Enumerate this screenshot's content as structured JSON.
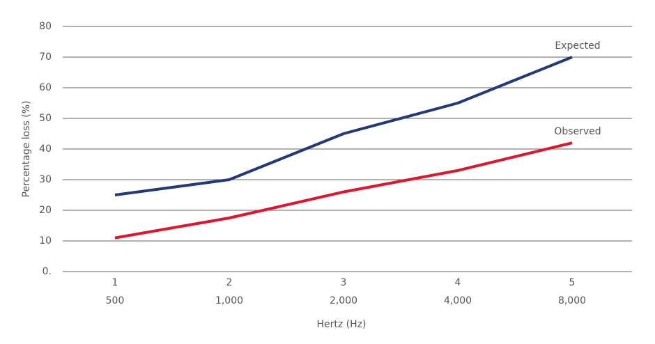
{
  "chart_data": {
    "type": "line",
    "x_label": "Hertz (Hz)",
    "y_label": "Percentage loss (%)",
    "categories": [
      [
        "1",
        "500"
      ],
      [
        "2",
        "1,000"
      ],
      [
        "3",
        "2,000"
      ],
      [
        "4",
        "4,000"
      ],
      [
        "5",
        "8,000"
      ]
    ],
    "series": [
      {
        "name": "Expected",
        "color": "#233a78",
        "values": [
          25,
          30,
          45,
          55,
          70
        ]
      },
      {
        "name": "Observed",
        "color": "#e0142c",
        "values": [
          11,
          17.5,
          26,
          33,
          42
        ]
      }
    ],
    "ylim": [
      0,
      80
    ],
    "yticks": [
      {
        "value": 0,
        "label": "0."
      },
      10,
      20,
      30,
      40,
      50,
      60,
      70,
      80
    ],
    "grid": true
  }
}
